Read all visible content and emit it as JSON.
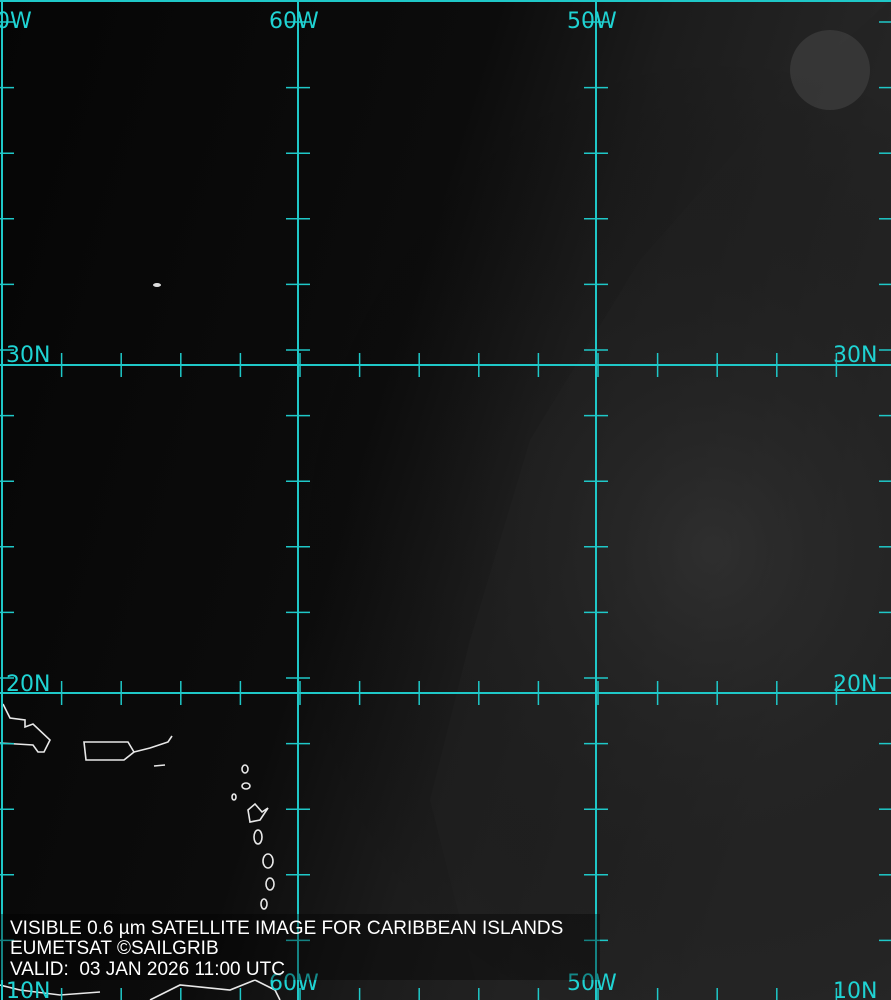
{
  "caption": {
    "line1": "VISIBLE 0.6 µm SATELLITE IMAGE FOR CARIBBEAN ISLANDS",
    "line2": "EUMETSAT ©SAILGRIB",
    "line3": "VALID:  03 JAN 2026 11:00 UTC"
  },
  "grid": {
    "color": "#1fc8c8",
    "top_labels": [
      "0W",
      "60W",
      "50W"
    ],
    "bottom_labels": [
      "10N",
      "60W",
      "50W",
      "10N"
    ],
    "left_labels": [
      "30N",
      "20N"
    ],
    "right_labels": [
      "30N",
      "20N"
    ]
  }
}
